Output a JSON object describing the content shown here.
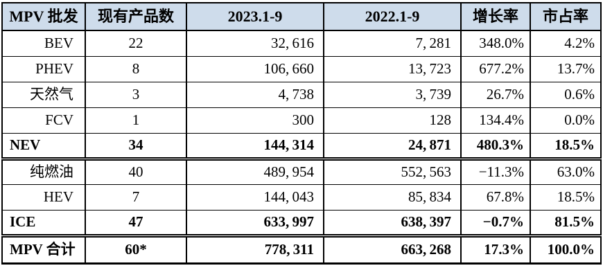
{
  "table": {
    "columns": [
      "MPV 批发",
      "现有产品数",
      "2023.1-9",
      "2022.1-9",
      "增长率",
      "市占率"
    ],
    "rows": [
      {
        "label": "BEV",
        "count": "22",
        "y2023": "32,616",
        "y2022": "7,281",
        "growth": "348.0%",
        "share": "4.2%"
      },
      {
        "label": "PHEV",
        "count": "8",
        "y2023": "106,660",
        "y2022": "13,723",
        "growth": "677.2%",
        "share": "13.7%"
      },
      {
        "label": "天然气",
        "count": "3",
        "y2023": "4,738",
        "y2022": "3,739",
        "growth": "26.7%",
        "share": "0.6%"
      },
      {
        "label": "FCV",
        "count": "1",
        "y2023": "300",
        "y2022": "128",
        "growth": "134.4%",
        "share": "0.0%"
      },
      {
        "label": "NEV",
        "count": "34",
        "y2023": "144,314",
        "y2022": "24,871",
        "growth": "480.3%",
        "share": "18.5%"
      },
      {
        "label": "纯燃油",
        "count": "40",
        "y2023": "489,954",
        "y2022": "552,563",
        "growth": "−11.3%",
        "share": "63.0%"
      },
      {
        "label": "HEV",
        "count": "7",
        "y2023": "144,043",
        "y2022": "85,834",
        "growth": "67.8%",
        "share": "18.5%"
      },
      {
        "label": "ICE",
        "count": "47",
        "y2023": "633,997",
        "y2022": "638,397",
        "growth": "−0.7%",
        "share": "81.5%"
      },
      {
        "label": "MPV 合计",
        "count": "60*",
        "y2023": "778,311",
        "y2022": "663,268",
        "growth": "17.3%",
        "share": "100.0%"
      }
    ]
  },
  "colors": {
    "header_background": "#CEDCEB",
    "border": "#000000",
    "text": "#000000"
  },
  "chart_data": {
    "type": "table",
    "title": "MPV 批发",
    "columns": [
      "MPV 批发",
      "现有产品数",
      "2023.1-9",
      "2022.1-9",
      "增长率",
      "市占率"
    ],
    "rows": [
      {
        "category": "BEV",
        "product_count": 22,
        "sales_2023_1_9": 32616,
        "sales_2022_1_9": 7281,
        "growth_rate_pct": 348.0,
        "market_share_pct": 4.2,
        "is_subtotal": false
      },
      {
        "category": "PHEV",
        "product_count": 8,
        "sales_2023_1_9": 106660,
        "sales_2022_1_9": 13723,
        "growth_rate_pct": 677.2,
        "market_share_pct": 13.7,
        "is_subtotal": false
      },
      {
        "category": "天然气",
        "product_count": 3,
        "sales_2023_1_9": 4738,
        "sales_2022_1_9": 3739,
        "growth_rate_pct": 26.7,
        "market_share_pct": 0.6,
        "is_subtotal": false
      },
      {
        "category": "FCV",
        "product_count": 1,
        "sales_2023_1_9": 300,
        "sales_2022_1_9": 128,
        "growth_rate_pct": 134.4,
        "market_share_pct": 0.0,
        "is_subtotal": false
      },
      {
        "category": "NEV",
        "product_count": 34,
        "sales_2023_1_9": 144314,
        "sales_2022_1_9": 24871,
        "growth_rate_pct": 480.3,
        "market_share_pct": 18.5,
        "is_subtotal": true
      },
      {
        "category": "纯燃油",
        "product_count": 40,
        "sales_2023_1_9": 489954,
        "sales_2022_1_9": 552563,
        "growth_rate_pct": -11.3,
        "market_share_pct": 63.0,
        "is_subtotal": false
      },
      {
        "category": "HEV",
        "product_count": 7,
        "sales_2023_1_9": 144043,
        "sales_2022_1_9": 85834,
        "growth_rate_pct": 67.8,
        "market_share_pct": 18.5,
        "is_subtotal": false
      },
      {
        "category": "ICE",
        "product_count": 47,
        "sales_2023_1_9": 633997,
        "sales_2022_1_9": 638397,
        "growth_rate_pct": -0.7,
        "market_share_pct": 81.5,
        "is_subtotal": true
      },
      {
        "category": "MPV 合计",
        "product_count": "60*",
        "sales_2023_1_9": 778311,
        "sales_2022_1_9": 663268,
        "growth_rate_pct": 17.3,
        "market_share_pct": 100.0,
        "is_subtotal": true
      }
    ]
  }
}
